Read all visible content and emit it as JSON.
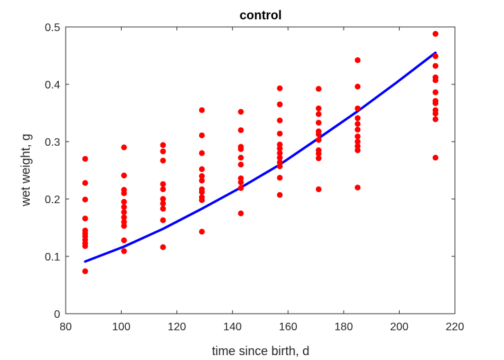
{
  "chart_data": {
    "type": "scatter",
    "title": "control",
    "xlabel": "time since birth, d",
    "ylabel": "wet weight, g",
    "xlim": [
      80,
      220
    ],
    "ylim": [
      0,
      0.5
    ],
    "xticks": [
      80,
      100,
      120,
      140,
      160,
      180,
      200,
      220
    ],
    "xtick_labels": [
      "80",
      "100",
      "120",
      "140",
      "160",
      "180",
      "200",
      "220"
    ],
    "yticks": [
      0,
      0.1,
      0.2,
      0.3,
      0.4,
      0.5
    ],
    "ytick_labels": [
      "0",
      "0.1",
      "0.2",
      "0.3",
      "0.4",
      "0.5"
    ],
    "grid": false,
    "box": true,
    "series": [
      {
        "kind": "points",
        "color": "#ff0000",
        "points": [
          [
            87,
            0.27
          ],
          [
            87,
            0.228
          ],
          [
            87,
            0.199
          ],
          [
            87,
            0.166
          ],
          [
            87,
            0.145
          ],
          [
            87,
            0.14
          ],
          [
            87,
            0.135
          ],
          [
            87,
            0.129
          ],
          [
            87,
            0.123
          ],
          [
            87,
            0.118
          ],
          [
            87,
            0.074
          ],
          [
            101,
            0.29
          ],
          [
            101,
            0.241
          ],
          [
            101,
            0.216
          ],
          [
            101,
            0.21
          ],
          [
            101,
            0.195
          ],
          [
            101,
            0.186
          ],
          [
            101,
            0.177
          ],
          [
            101,
            0.168
          ],
          [
            101,
            0.16
          ],
          [
            101,
            0.153
          ],
          [
            101,
            0.128
          ],
          [
            101,
            0.109
          ],
          [
            115,
            0.294
          ],
          [
            115,
            0.283
          ],
          [
            115,
            0.267
          ],
          [
            115,
            0.226
          ],
          [
            115,
            0.217
          ],
          [
            115,
            0.2
          ],
          [
            115,
            0.192
          ],
          [
            115,
            0.183
          ],
          [
            115,
            0.163
          ],
          [
            115,
            0.116
          ],
          [
            129,
            0.355
          ],
          [
            129,
            0.311
          ],
          [
            129,
            0.28
          ],
          [
            129,
            0.252
          ],
          [
            129,
            0.24
          ],
          [
            129,
            0.232
          ],
          [
            129,
            0.217
          ],
          [
            129,
            0.212
          ],
          [
            129,
            0.203
          ],
          [
            129,
            0.198
          ],
          [
            129,
            0.143
          ],
          [
            143,
            0.352
          ],
          [
            143,
            0.32
          ],
          [
            143,
            0.291
          ],
          [
            143,
            0.287
          ],
          [
            143,
            0.272
          ],
          [
            143,
            0.26
          ],
          [
            143,
            0.236
          ],
          [
            143,
            0.229
          ],
          [
            143,
            0.219
          ],
          [
            143,
            0.175
          ],
          [
            157,
            0.393
          ],
          [
            157,
            0.365
          ],
          [
            157,
            0.337
          ],
          [
            157,
            0.314
          ],
          [
            157,
            0.295
          ],
          [
            157,
            0.288
          ],
          [
            157,
            0.28
          ],
          [
            157,
            0.272
          ],
          [
            157,
            0.264
          ],
          [
            157,
            0.257
          ],
          [
            157,
            0.237
          ],
          [
            157,
            0.207
          ],
          [
            171,
            0.392
          ],
          [
            171,
            0.358
          ],
          [
            171,
            0.348
          ],
          [
            171,
            0.333
          ],
          [
            171,
            0.318
          ],
          [
            171,
            0.313
          ],
          [
            171,
            0.303
          ],
          [
            171,
            0.285
          ],
          [
            171,
            0.279
          ],
          [
            171,
            0.271
          ],
          [
            171,
            0.217
          ],
          [
            185,
            0.442
          ],
          [
            185,
            0.396
          ],
          [
            185,
            0.358
          ],
          [
            185,
            0.341
          ],
          [
            185,
            0.331
          ],
          [
            185,
            0.321
          ],
          [
            185,
            0.309
          ],
          [
            185,
            0.3
          ],
          [
            185,
            0.292
          ],
          [
            185,
            0.285
          ],
          [
            185,
            0.22
          ],
          [
            213,
            0.488
          ],
          [
            213,
            0.449
          ],
          [
            213,
            0.432
          ],
          [
            213,
            0.412
          ],
          [
            213,
            0.407
          ],
          [
            213,
            0.386
          ],
          [
            213,
            0.371
          ],
          [
            213,
            0.367
          ],
          [
            213,
            0.355
          ],
          [
            213,
            0.349
          ],
          [
            213,
            0.339
          ],
          [
            213,
            0.272
          ]
        ]
      },
      {
        "kind": "line",
        "color": "#0000ff",
        "x": [
          87,
          101,
          115,
          129,
          143,
          157,
          171,
          185,
          199,
          213
        ],
        "y": [
          0.091,
          0.117,
          0.148,
          0.183,
          0.22,
          0.26,
          0.306,
          0.353,
          0.403,
          0.455
        ]
      }
    ]
  }
}
